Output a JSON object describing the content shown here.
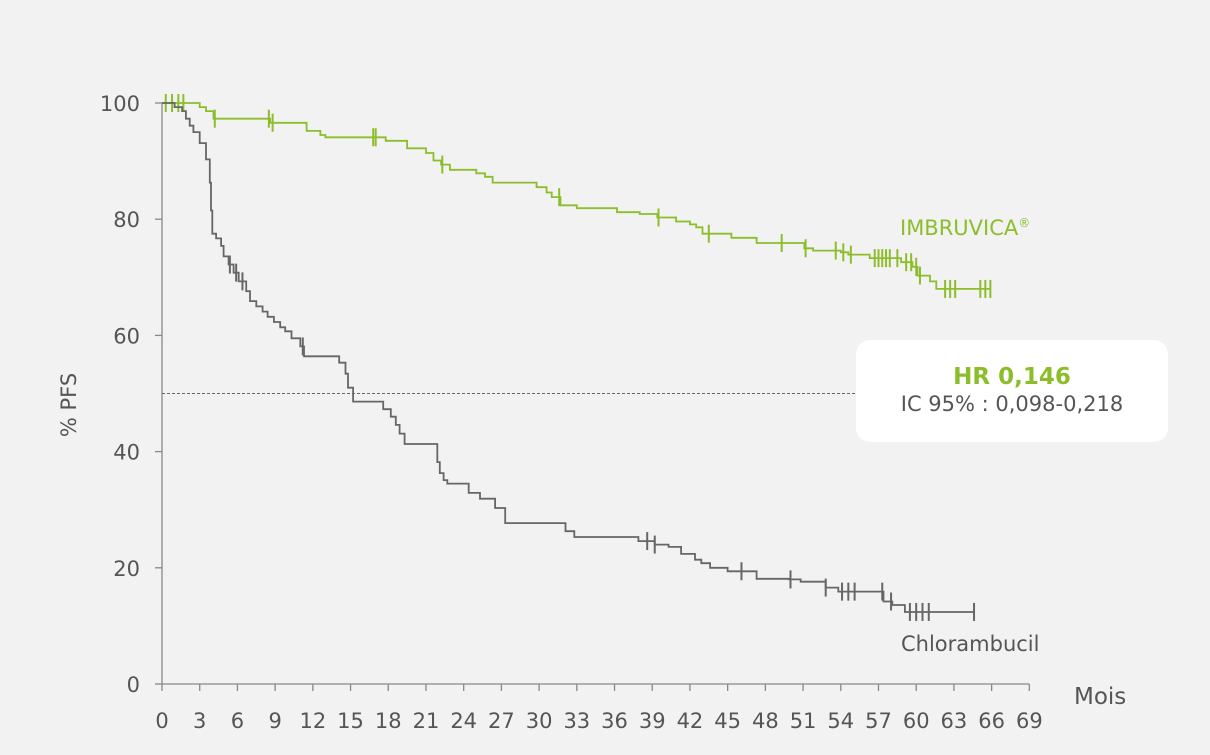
{
  "chart_data": {
    "type": "line",
    "title": "",
    "xlabel": "Mois",
    "ylabel": "% PFS",
    "xlim": [
      0,
      69
    ],
    "ylim": [
      0,
      100
    ],
    "x_ticks": [
      0,
      3,
      6,
      9,
      12,
      15,
      18,
      21,
      24,
      27,
      30,
      33,
      36,
      39,
      42,
      45,
      48,
      51,
      54,
      57,
      60,
      63,
      66,
      69
    ],
    "y_ticks": [
      0,
      20,
      40,
      60,
      80,
      100
    ],
    "reference_line_y": 50,
    "colors": {
      "imbruvica": "#8cbe2b",
      "chlorambucil": "#666666",
      "axis": "#888888",
      "text": "#555555"
    },
    "series": [
      {
        "name": "IMBRUVICA",
        "label": "IMBRUVICA",
        "label_superscript": "®",
        "color": "#8cbe2b",
        "steps": [
          [
            0,
            100
          ],
          [
            3,
            99.3
          ],
          [
            3.5,
            98.6
          ],
          [
            4.1,
            97.3
          ],
          [
            8.6,
            96.6
          ],
          [
            11.5,
            95.2
          ],
          [
            12.6,
            94.5
          ],
          [
            13,
            94.1
          ],
          [
            17.8,
            93.5
          ],
          [
            19.5,
            92.2
          ],
          [
            21,
            91.4
          ],
          [
            21.6,
            90.1
          ],
          [
            22.2,
            89.4
          ],
          [
            22.9,
            88.5
          ],
          [
            25,
            87.9
          ],
          [
            25.7,
            87.3
          ],
          [
            26.3,
            86.3
          ],
          [
            29.8,
            85.5
          ],
          [
            30.6,
            84.6
          ],
          [
            31,
            83.8
          ],
          [
            31.7,
            82.4
          ],
          [
            33,
            81.9
          ],
          [
            36.2,
            81.2
          ],
          [
            38,
            80.9
          ],
          [
            39.4,
            80.3
          ],
          [
            40.9,
            79.6
          ],
          [
            42,
            79.1
          ],
          [
            42.5,
            78.6
          ],
          [
            43,
            77.5
          ],
          [
            45.3,
            76.8
          ],
          [
            47.3,
            75.9
          ],
          [
            51.1,
            75
          ],
          [
            51.8,
            74.6
          ],
          [
            54,
            74.3
          ],
          [
            54.6,
            73.9
          ],
          [
            56.3,
            73.3
          ],
          [
            58.8,
            72.6
          ],
          [
            59.7,
            71.8
          ],
          [
            60.1,
            70.3
          ],
          [
            61.1,
            69.3
          ],
          [
            61.6,
            68
          ],
          [
            65.9,
            68
          ]
        ],
        "censored": [
          0.3,
          0.8,
          1.3,
          1.7,
          4.2,
          8.5,
          8.8,
          16.8,
          17,
          22.3,
          31.6,
          39.5,
          43.5,
          49.3,
          51.2,
          53.6,
          54.2,
          54.8,
          56.7,
          57,
          57.3,
          57.6,
          57.9,
          58.5,
          59.2,
          59.6,
          60,
          60.3,
          62.3,
          62.7,
          63.1,
          65.1,
          65.5,
          65.9
        ]
      },
      {
        "name": "Chlorambucil",
        "label": "Chlorambucil",
        "label_superscript": "",
        "color": "#666666",
        "steps": [
          [
            0,
            100
          ],
          [
            1,
            99.3
          ],
          [
            1.6,
            98.6
          ],
          [
            1.9,
            97.3
          ],
          [
            2.2,
            96.1
          ],
          [
            2.5,
            95
          ],
          [
            3,
            93.1
          ],
          [
            3.5,
            90.3
          ],
          [
            3.8,
            86.3
          ],
          [
            3.9,
            81.5
          ],
          [
            4,
            77.5
          ],
          [
            4.3,
            76.7
          ],
          [
            4.7,
            75.4
          ],
          [
            4.9,
            73.6
          ],
          [
            5.3,
            72.2
          ],
          [
            5.7,
            70.8
          ],
          [
            6.1,
            69.3
          ],
          [
            6.7,
            67.6
          ],
          [
            7,
            65.9
          ],
          [
            7.5,
            65
          ],
          [
            8,
            64.1
          ],
          [
            8.4,
            63.2
          ],
          [
            8.9,
            62.3
          ],
          [
            9.4,
            61.4
          ],
          [
            9.8,
            60.7
          ],
          [
            10.3,
            59.5
          ],
          [
            11,
            58.1
          ],
          [
            11.3,
            56.4
          ],
          [
            14.1,
            55.3
          ],
          [
            14.6,
            53.4
          ],
          [
            14.8,
            51
          ],
          [
            15.2,
            48.6
          ],
          [
            17.6,
            47.3
          ],
          [
            18.2,
            46
          ],
          [
            18.6,
            44.6
          ],
          [
            18.9,
            43.1
          ],
          [
            19.3,
            41.3
          ],
          [
            21.9,
            38.2
          ],
          [
            22.1,
            36.3
          ],
          [
            22.4,
            35.1
          ],
          [
            22.7,
            34.5
          ],
          [
            24.4,
            32.9
          ],
          [
            25.3,
            31.9
          ],
          [
            26.5,
            30.3
          ],
          [
            27.3,
            27.7
          ],
          [
            32.1,
            26.3
          ],
          [
            32.8,
            25.3
          ],
          [
            37.9,
            24.6
          ],
          [
            39.2,
            24
          ],
          [
            40.3,
            23.6
          ],
          [
            41.3,
            22.4
          ],
          [
            42.4,
            21.4
          ],
          [
            42.9,
            20.8
          ],
          [
            43.6,
            20
          ],
          [
            45,
            19.4
          ],
          [
            47.3,
            18.1
          ],
          [
            49.9,
            18
          ],
          [
            50.8,
            17.6
          ],
          [
            52.8,
            16.6
          ],
          [
            53.8,
            15.9
          ],
          [
            57.4,
            14.2
          ],
          [
            58.1,
            13.6
          ],
          [
            59.1,
            12.4
          ],
          [
            64.6,
            12.4
          ]
        ],
        "censored": [
          5.4,
          5.9,
          6.4,
          11.2,
          38.6,
          39.2,
          46.1,
          50,
          52.8,
          54.1,
          54.6,
          55.1,
          57.3,
          58,
          59.5,
          60,
          60.5,
          61,
          64.6
        ]
      }
    ]
  },
  "hr_box": {
    "title": "HR 0,146",
    "ci": "IC 95% : 0,098-0,218"
  }
}
